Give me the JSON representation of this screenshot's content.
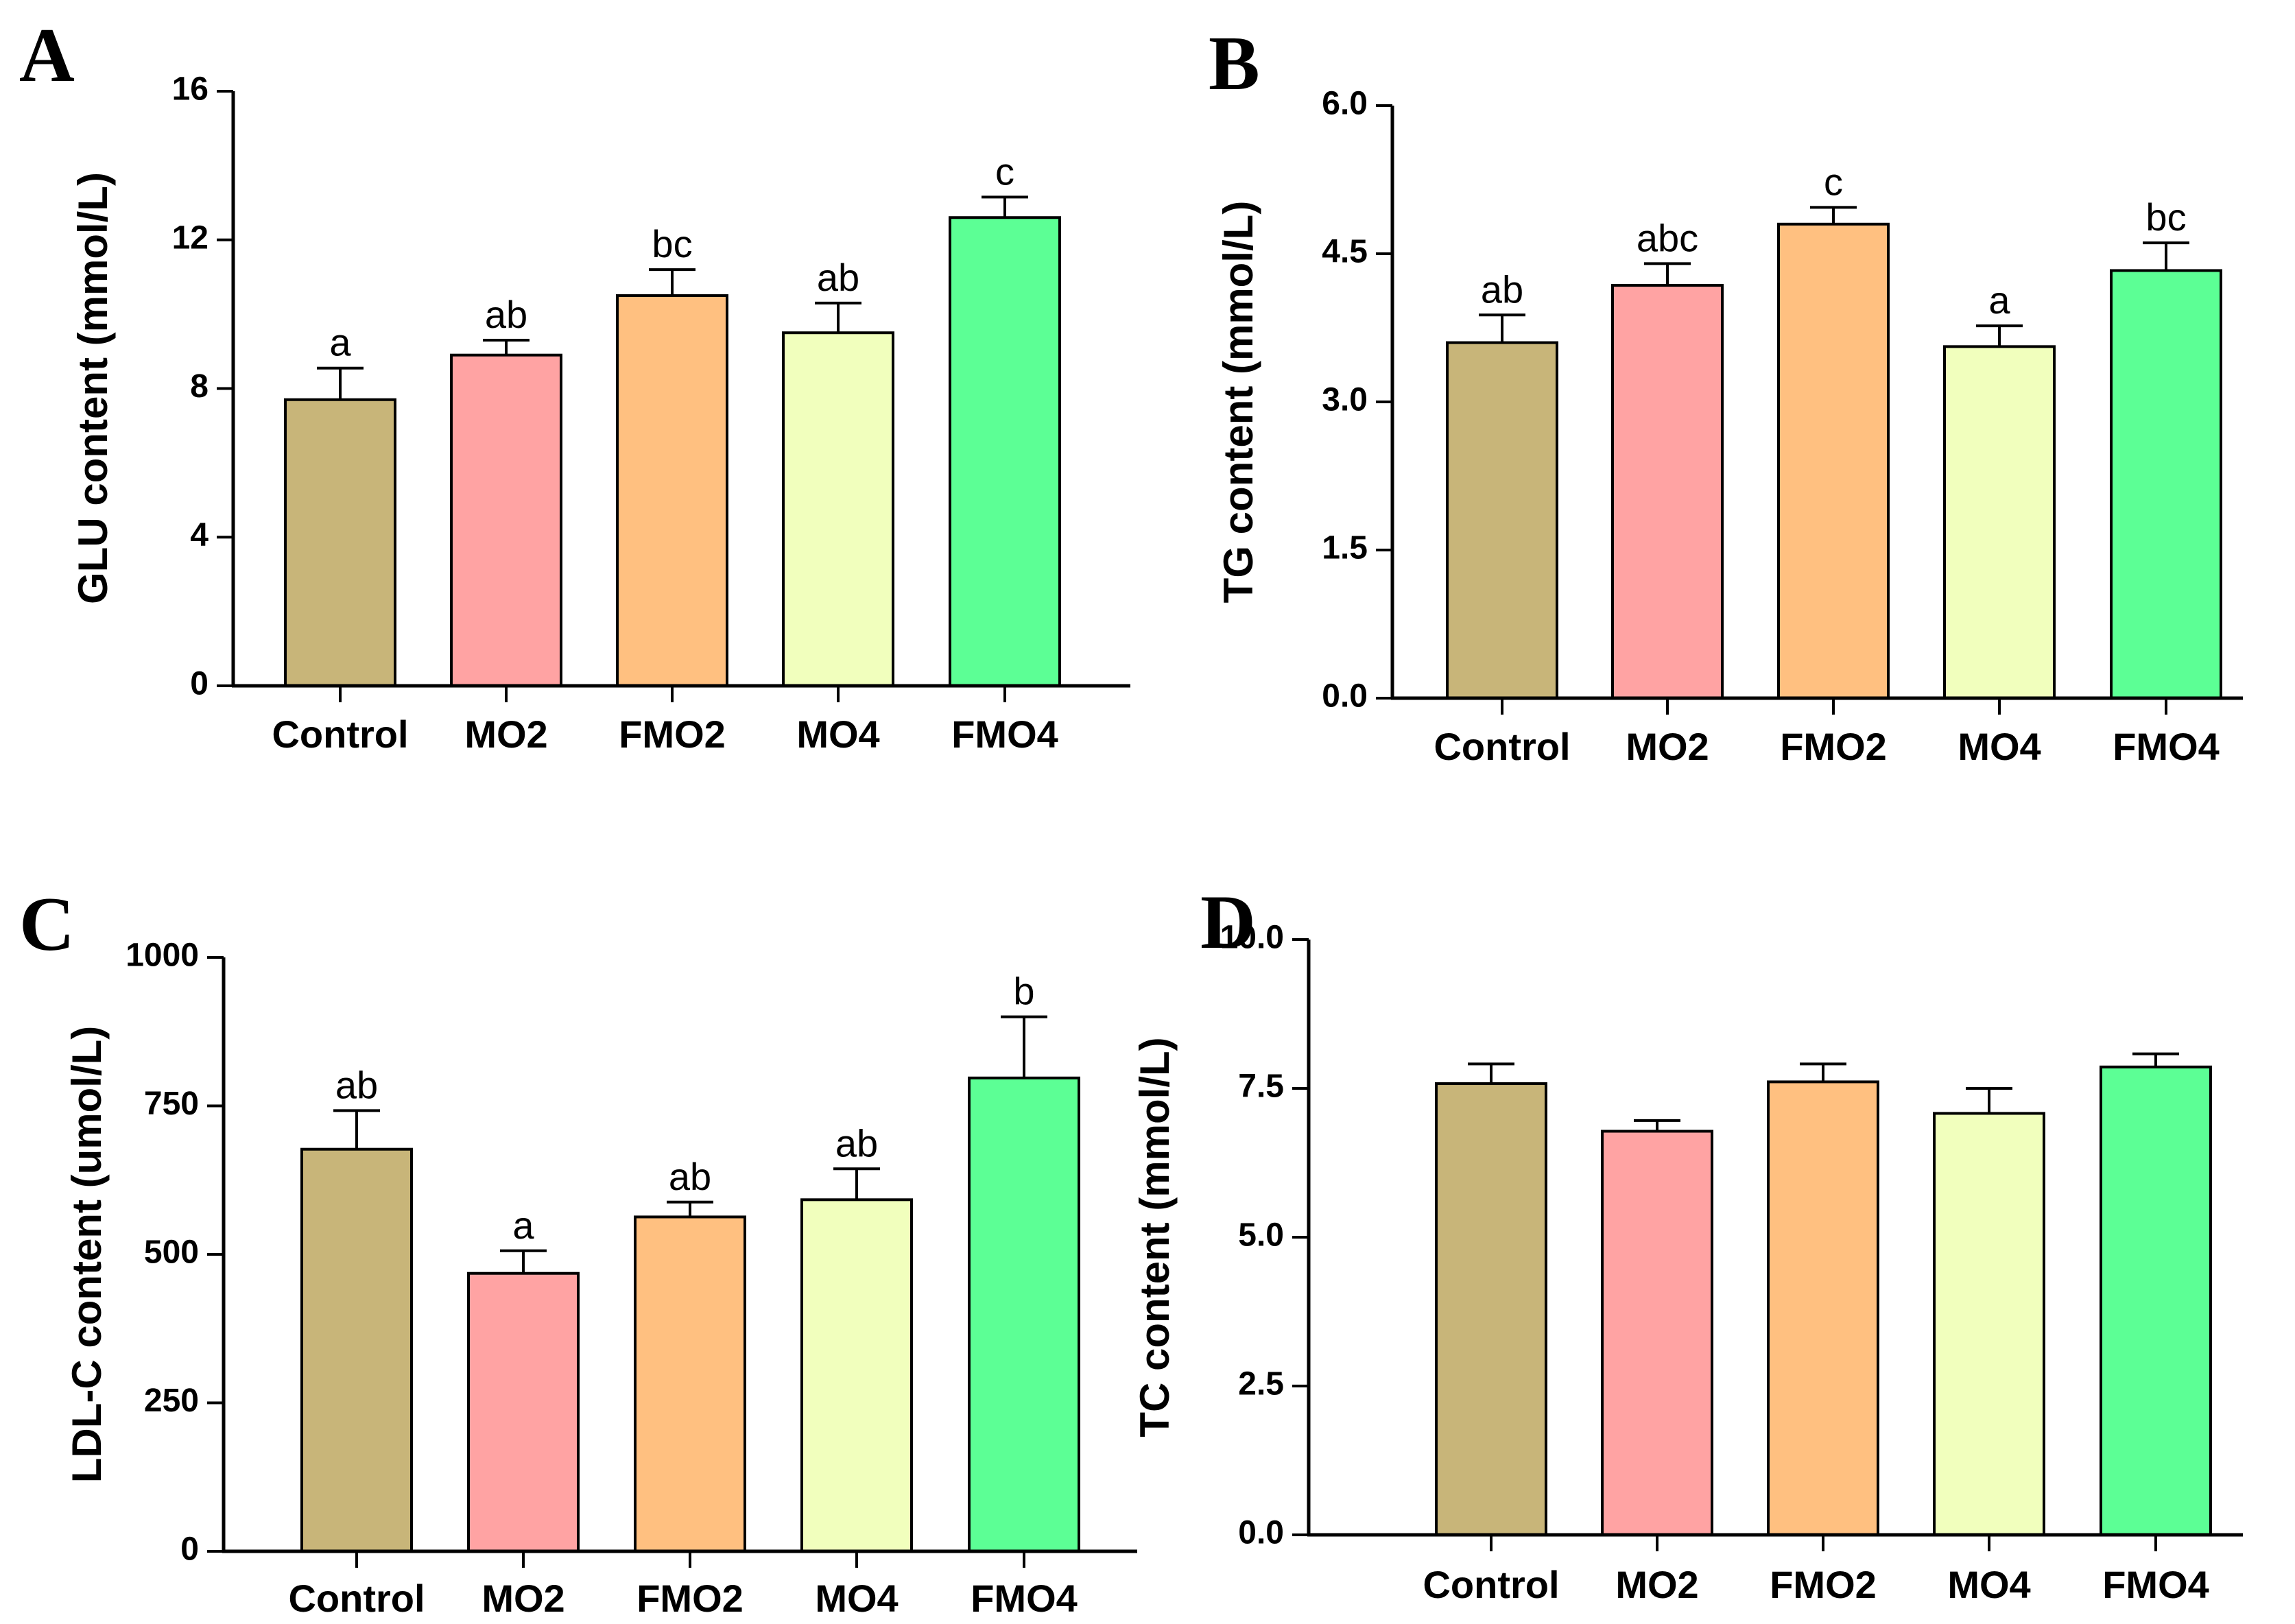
{
  "chart_data": [
    {
      "type": "bar",
      "panel": "A",
      "categories": [
        "Control",
        "MO2",
        "FMO2",
        "MO4",
        "FMO4"
      ],
      "values": [
        7.7,
        8.9,
        10.5,
        9.5,
        12.6
      ],
      "errors": [
        0.85,
        0.4,
        0.7,
        0.8,
        0.55
      ],
      "significance": [
        "a",
        "ab",
        "bc",
        "ab",
        "c"
      ],
      "colors": [
        "#c8b579",
        "#ffa3a3",
        "#ffc080",
        "#f1ffbd",
        "#5cff95"
      ],
      "xlabel": "",
      "ylabel": "GLU content (mmol/L)",
      "ylim": [
        0,
        16
      ],
      "yticks": [
        "0",
        "4",
        "8",
        "12",
        "16"
      ],
      "grid": false,
      "legend": "none"
    },
    {
      "type": "bar",
      "panel": "B",
      "categories": [
        "Control",
        "MO2",
        "FMO2",
        "MO4",
        "FMO4"
      ],
      "values": [
        3.6,
        4.18,
        4.8,
        3.56,
        4.33
      ],
      "errors": [
        0.28,
        0.22,
        0.17,
        0.21,
        0.28
      ],
      "significance": [
        "ab",
        "abc",
        "c",
        "a",
        "bc"
      ],
      "colors": [
        "#c8b579",
        "#ffa3a3",
        "#ffc080",
        "#f1ffbd",
        "#5cff95"
      ],
      "xlabel": "",
      "ylabel": "TG content (mmol/L)",
      "ylim": [
        0,
        6
      ],
      "yticks": [
        "0.0",
        "1.5",
        "3.0",
        "4.5",
        "6.0"
      ],
      "grid": false,
      "legend": "none"
    },
    {
      "type": "bar",
      "panel": "C",
      "categories": [
        "Control",
        "MO2",
        "FMO2",
        "MO4",
        "FMO4"
      ],
      "values": [
        677,
        468,
        563,
        592,
        797
      ],
      "errors": [
        65,
        38,
        25,
        52,
        103
      ],
      "significance": [
        "ab",
        "a",
        "ab",
        "ab",
        "b"
      ],
      "colors": [
        "#c8b579",
        "#ffa3a3",
        "#ffc080",
        "#f1ffbd",
        "#5cff95"
      ],
      "xlabel": "",
      "ylabel": "LDL-C content (umol/L)",
      "ylim": [
        0,
        1000
      ],
      "yticks": [
        "0",
        "250",
        "500",
        "750",
        "1000"
      ],
      "grid": false,
      "legend": "none"
    },
    {
      "type": "bar",
      "panel": "D",
      "categories": [
        "Control",
        "MO2",
        "FMO2",
        "MO4",
        "FMO4"
      ],
      "values": [
        7.58,
        6.78,
        7.61,
        7.08,
        7.86
      ],
      "errors": [
        0.33,
        0.18,
        0.3,
        0.42,
        0.22
      ],
      "significance": [
        "",
        "",
        "",
        "",
        ""
      ],
      "colors": [
        "#c8b579",
        "#ffa3a3",
        "#ffc080",
        "#f1ffbd",
        "#5cff95"
      ],
      "xlabel": "",
      "ylabel": "TC content (mmol/L)",
      "ylim": [
        0,
        10
      ],
      "yticks": [
        "0.0",
        "2.5",
        "5.0",
        "7.5",
        "10.0"
      ],
      "grid": false,
      "legend": "none"
    }
  ]
}
